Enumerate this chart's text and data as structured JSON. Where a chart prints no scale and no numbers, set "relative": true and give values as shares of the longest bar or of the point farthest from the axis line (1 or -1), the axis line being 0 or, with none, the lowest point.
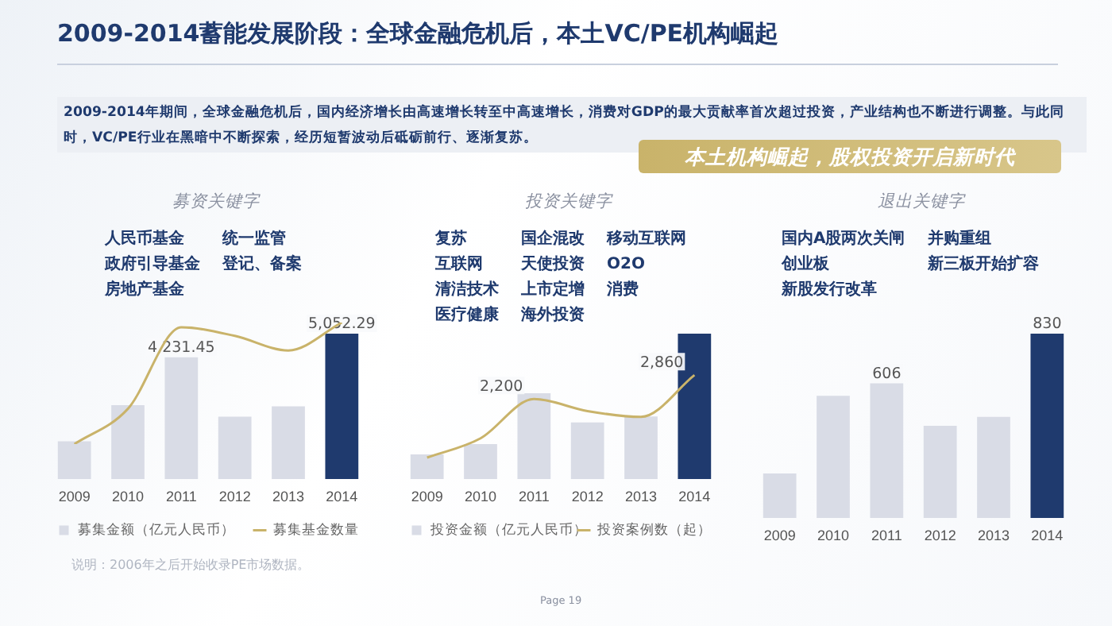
{
  "chart_data": [
    {
      "type": "other",
      "title": "2009-2014蓄能发展阶段：全球金融危机后，本土VC/PE机构崛起",
      "annotations": [
        "2009-2014年期间，全球金融危机后，国内经济增长由高速增长转至中高速增长，消费对GDP的最大贡献率首次超过投资，产业结构也不断进行调整。与此同时，VC/PE行业在黑暗中不断探索，经历短暂波动后砥砺前行、逐渐复苏。",
        "本土机构崛起，股权投资开启新时代",
        "说明：2006年之后开始收录PE市场数据。",
        "Page 19"
      ]
    },
    {
      "type": "bar",
      "title": "募资关键字",
      "annotations": [
        "人民币基金",
        "政府引导基金",
        "房地产基金",
        "统一监管",
        "登记、备案"
      ],
      "grid": false,
      "legend": "bottom",
      "ylim": [
        0,
        5052.29
      ],
      "tick_labels": "x",
      "categories": [
        "2009",
        "2010",
        "2011",
        "2012",
        "2013",
        "2014"
      ],
      "series": [
        {
          "name": "募集金额（亿元人民币）",
          "color": "#d9dce6",
          "colors": [
            "#d9dce6",
            "#d9dce6",
            "#d9dce6",
            "#d9dce6",
            "#d9dce6",
            "#1f3a6e"
          ],
          "values": [
            1310,
            2570,
            4231.45,
            2165,
            2526,
            5052.29
          ],
          "value_labels": [
            null,
            null,
            "4,231.45",
            null,
            null,
            "5,052.29"
          ]
        }
      ]
    },
    {
      "type": "line",
      "relative": true,
      "grid": false,
      "legend": "bottom",
      "marker": "none",
      "tick_labels": false,
      "categories": [
        "2009",
        "2010",
        "2011",
        "2012",
        "2013",
        "2014"
      ],
      "series": [
        {
          "name": "募集基金数量",
          "color": "#c9b36a",
          "values": [
            0,
            0.29,
            0.96,
            0.89,
            0.77,
            1
          ]
        }
      ]
    },
    {
      "type": "bar",
      "title": "投资关键字",
      "annotations": [
        "复苏",
        "互联网",
        "清洁技术",
        "医疗健康",
        "国企混改",
        "天使投资",
        "上市定增",
        "海外投资",
        "移动互联网",
        "O2O",
        "消费"
      ],
      "relative": true,
      "grid": false,
      "legend": "bottom",
      "categories": [
        "2009",
        "2010",
        "2011",
        "2012",
        "2013",
        "2014"
      ],
      "series": [
        {
          "name": "投资金额（亿元人民币）",
          "color": "#d9dce6",
          "colors": [
            "#d9dce6",
            "#d9dce6",
            "#d9dce6",
            "#d9dce6",
            "#d9dce6",
            "#1f3a6e"
          ],
          "values": [
            0.17,
            0.24,
            0.59,
            0.39,
            0.43,
            1
          ]
        }
      ]
    },
    {
      "type": "line",
      "grid": false,
      "legend": "bottom",
      "marker": "none",
      "tick_labels": false,
      "categories": [
        "2009",
        "2010",
        "2011",
        "2012",
        "2013",
        "2014"
      ],
      "series": [
        {
          "name": "投资案例数（起）",
          "color": "#c9b36a",
          "values": [
            590,
            1120,
            2200,
            1870,
            1710,
            2860
          ],
          "value_labels": [
            null,
            null,
            "2,200",
            null,
            null,
            "2,860"
          ]
        }
      ]
    },
    {
      "type": "bar",
      "title": "退出关键字",
      "annotations": [
        "国内A股两次关闸",
        "创业板",
        "新股发行改革",
        "并购重组",
        "新三板开始扩容"
      ],
      "grid": false,
      "legend": false,
      "ylim": [
        0,
        830
      ],
      "tick_labels": "x",
      "categories": [
        "2009",
        "2010",
        "2011",
        "2012",
        "2013",
        "2014"
      ],
      "series": [
        {
          "color": "#d9dce6",
          "colors": [
            "#d9dce6",
            "#d9dce6",
            "#d9dce6",
            "#d9dce6",
            "#d9dce6",
            "#1f3a6e"
          ],
          "values": [
            200,
            550,
            606,
            415,
            455,
            830
          ],
          "value_labels": [
            null,
            null,
            "606",
            null,
            null,
            "830"
          ]
        }
      ]
    }
  ]
}
